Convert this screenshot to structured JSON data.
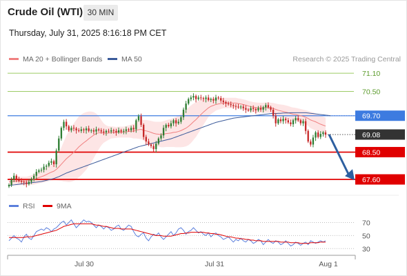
{
  "header": {
    "title": "Crude Oil (WTI)",
    "timeframe": "30 MIN",
    "timestamp": "Thursday, July 31, 2025 8:16:18 PM CET"
  },
  "legend": {
    "bb_label": "MA 20 + Bollinger Bands",
    "ma50_label": "MA 50",
    "credit": "Research © 2025 Trading Central"
  },
  "colors": {
    "bb": "#f08080",
    "ma50": "#3a5a9a",
    "bull": "#2e7d32",
    "bear": "#c62828",
    "resistance": "#9ccc65",
    "support": "#e00000",
    "pivot": "#3d7be0",
    "current": "#333333",
    "arrow": "#2d5fa0",
    "rsi": "#5b7fdc",
    "rsi_ma": "#e00000"
  },
  "chart_data": [
    {
      "type": "candlestick",
      "title": "Crude Oil (WTI)",
      "timeframe": "30 MIN",
      "x_ticks": [
        "Jul 30",
        "Jul 31",
        "Aug 1"
      ],
      "ylim": [
        67.1,
        71.4
      ],
      "levels": [
        {
          "value": 71.1,
          "label": "71.10",
          "kind": "resistance"
        },
        {
          "value": 70.5,
          "label": "70.50",
          "kind": "resistance"
        },
        {
          "value": 69.7,
          "label": "69.70",
          "kind": "pivot"
        },
        {
          "value": 69.08,
          "label": "69.08",
          "kind": "current"
        },
        {
          "value": 68.5,
          "label": "68.50",
          "kind": "support"
        },
        {
          "value": 67.6,
          "label": "67.60",
          "kind": "support"
        }
      ],
      "close": [
        67.42,
        67.6,
        67.72,
        67.62,
        67.55,
        67.52,
        67.5,
        67.45,
        67.52,
        67.62,
        67.72,
        67.85,
        67.9,
        67.92,
        68.02,
        68.05,
        68.15,
        68.2,
        68.1,
        68.55,
        68.95,
        69.3,
        69.5,
        69.35,
        69.22,
        69.3,
        69.28,
        69.22,
        69.2,
        69.25,
        69.22,
        69.28,
        69.2,
        69.22,
        69.18,
        69.25,
        69.22,
        69.18,
        69.15,
        69.2,
        69.18,
        69.22,
        69.2,
        69.15,
        69.22,
        69.18,
        69.2,
        69.25,
        69.22,
        69.3,
        69.25,
        69.55,
        69.68,
        69.4,
        69.0,
        68.85,
        68.75,
        68.7,
        68.6,
        68.78,
        68.95,
        69.05,
        69.3,
        69.4,
        69.35,
        69.45,
        69.55,
        69.45,
        69.5,
        69.65,
        69.9,
        70.1,
        70.25,
        70.3,
        70.35,
        70.25,
        70.3,
        70.28,
        70.25,
        70.3,
        70.22,
        70.25,
        70.2,
        70.3,
        70.28,
        70.2,
        70.15,
        70.1,
        70.08,
        70.05,
        70.02,
        70.0,
        69.98,
        70.0,
        69.95,
        69.9,
        69.88,
        69.95,
        69.92,
        69.88,
        69.95,
        69.9,
        69.98,
        70.05,
        69.98,
        69.9,
        69.7,
        69.45,
        69.58,
        69.52,
        69.6,
        69.55,
        69.48,
        69.42,
        69.55,
        69.62,
        69.55,
        69.45,
        69.52,
        69.2,
        68.85,
        68.75,
        68.98,
        69.15,
        69.0,
        69.1,
        69.15,
        69.08
      ],
      "ma20": [
        67.52,
        67.52,
        67.54,
        67.55,
        67.55,
        67.55,
        67.55,
        67.55,
        67.56,
        67.58,
        67.6,
        67.63,
        67.66,
        67.69,
        67.72,
        67.76,
        67.8,
        67.84,
        67.87,
        67.93,
        68.01,
        68.1,
        68.19,
        68.28,
        68.35,
        68.42,
        68.5,
        68.58,
        68.67,
        68.74,
        68.81,
        68.87,
        68.94,
        69.0,
        69.06,
        69.11,
        69.14,
        69.14,
        69.13,
        69.12,
        69.13,
        69.15,
        69.15,
        69.15,
        69.16,
        69.16,
        69.16,
        69.17,
        69.18,
        69.19,
        69.19,
        69.22,
        69.24,
        69.25,
        69.22,
        69.2,
        69.18,
        69.15,
        69.12,
        69.1,
        69.09,
        69.08,
        69.09,
        69.11,
        69.12,
        69.13,
        69.15,
        69.16,
        69.18,
        69.21,
        69.25,
        69.29,
        69.35,
        69.42,
        69.5,
        69.57,
        69.66,
        69.74,
        69.82,
        69.89,
        69.96,
        70.01,
        70.04,
        70.07,
        70.09,
        70.1,
        70.12,
        70.12,
        70.12,
        70.12,
        70.12,
        70.12,
        70.1,
        70.09,
        70.07,
        70.05,
        70.02,
        70.0,
        69.98,
        69.97,
        69.96,
        69.96,
        69.96,
        69.97,
        69.97,
        69.96,
        69.94,
        69.91,
        69.88,
        69.86,
        69.84,
        69.82,
        69.8,
        69.77,
        69.75,
        69.74,
        69.72,
        69.7,
        69.68,
        69.65,
        69.61,
        69.56,
        69.53,
        69.5,
        69.46,
        69.42,
        69.39,
        69.36
      ],
      "ma50": [
        67.4,
        67.41,
        67.42,
        67.43,
        67.44,
        67.45,
        67.46,
        67.47,
        67.48,
        67.49,
        67.5,
        67.51,
        67.52,
        67.53,
        67.55,
        67.57,
        67.59,
        67.61,
        67.63,
        67.66,
        67.69,
        67.73,
        67.77,
        67.81,
        67.84,
        67.87,
        67.9,
        67.93,
        67.96,
        67.99,
        68.02,
        68.05,
        68.08,
        68.11,
        68.14,
        68.17,
        68.2,
        68.23,
        68.26,
        68.29,
        68.32,
        68.35,
        68.38,
        68.41,
        68.44,
        68.47,
        68.5,
        68.53,
        68.56,
        68.59,
        68.62,
        68.65,
        68.68,
        68.7,
        68.72,
        68.74,
        68.76,
        68.78,
        68.8,
        68.82,
        68.84,
        68.86,
        68.88,
        68.9,
        68.92,
        68.94,
        68.97,
        69.0,
        69.03,
        69.06,
        69.09,
        69.12,
        69.15,
        69.18,
        69.21,
        69.24,
        69.27,
        69.3,
        69.33,
        69.36,
        69.39,
        69.42,
        69.45,
        69.48,
        69.5,
        69.52,
        69.54,
        69.56,
        69.58,
        69.6,
        69.62,
        69.63,
        69.64,
        69.65,
        69.66,
        69.67,
        69.68,
        69.69,
        69.7,
        69.71,
        69.72,
        69.73,
        69.74,
        69.75,
        69.76,
        69.77,
        69.77,
        69.77,
        69.78,
        69.78,
        69.79,
        69.79,
        69.79,
        69.8,
        69.8,
        69.8,
        69.8,
        69.8,
        69.8,
        69.8,
        69.79,
        69.78,
        69.77,
        69.76,
        69.75,
        69.74,
        69.73,
        69.72,
        69.71,
        69.7
      ],
      "bb_width": [
        0.12,
        0.12,
        0.13,
        0.14,
        0.14,
        0.14,
        0.14,
        0.14,
        0.15,
        0.16,
        0.17,
        0.18,
        0.19,
        0.2,
        0.22,
        0.24,
        0.26,
        0.28,
        0.3,
        0.36,
        0.45,
        0.55,
        0.66,
        0.76,
        0.84,
        0.9,
        0.95,
        0.98,
        1.0,
        1.0,
        0.98,
        0.95,
        0.9,
        0.84,
        0.76,
        0.66,
        0.55,
        0.42,
        0.32,
        0.26,
        0.22,
        0.2,
        0.19,
        0.18,
        0.18,
        0.18,
        0.18,
        0.19,
        0.2,
        0.22,
        0.24,
        0.27,
        0.3,
        0.32,
        0.34,
        0.36,
        0.37,
        0.38,
        0.39,
        0.4,
        0.41,
        0.42,
        0.43,
        0.44,
        0.45,
        0.46,
        0.48,
        0.5,
        0.52,
        0.55,
        0.58,
        0.6,
        0.62,
        0.62,
        0.6,
        0.57,
        0.53,
        0.48,
        0.42,
        0.36,
        0.3,
        0.26,
        0.23,
        0.2,
        0.19,
        0.18,
        0.17,
        0.17,
        0.17,
        0.17,
        0.17,
        0.17,
        0.17,
        0.17,
        0.17,
        0.17,
        0.17,
        0.17,
        0.17,
        0.17,
        0.17,
        0.17,
        0.17,
        0.17,
        0.17,
        0.17,
        0.18,
        0.19,
        0.2,
        0.21,
        0.22,
        0.22,
        0.22,
        0.22,
        0.22,
        0.22,
        0.22,
        0.22,
        0.22,
        0.23,
        0.25,
        0.27,
        0.28,
        0.28,
        0.28,
        0.28,
        0.28,
        0.28
      ]
    },
    {
      "type": "line",
      "legend": [
        "RSI",
        "9MA"
      ],
      "y_ticks": [
        70,
        50,
        30
      ],
      "ylim": [
        25,
        80
      ],
      "rsi": [
        42,
        46,
        50,
        46,
        44,
        40,
        48,
        52,
        46,
        44,
        50,
        56,
        58,
        60,
        58,
        62,
        60,
        56,
        60,
        62,
        66,
        70,
        72,
        66,
        70,
        74,
        68,
        62,
        66,
        70,
        74,
        71,
        72,
        70,
        66,
        62,
        66,
        64,
        60,
        64,
        62,
        58,
        60,
        64,
        66,
        60,
        58,
        62,
        66,
        64,
        56,
        50,
        48,
        52,
        54,
        46,
        42,
        48,
        52,
        50,
        54,
        48,
        44,
        48,
        52,
        56,
        50,
        54,
        60,
        62,
        58,
        52,
        56,
        58,
        62,
        58,
        54,
        56,
        52,
        50,
        54,
        48,
        52,
        54,
        50,
        48,
        44,
        46,
        48,
        44,
        40,
        44,
        42,
        46,
        42,
        40,
        44,
        42,
        38,
        40,
        44,
        42,
        36,
        40,
        44,
        40,
        38,
        42,
        40,
        36,
        38,
        42,
        38,
        34,
        36,
        40,
        38,
        35,
        38,
        40,
        36,
        42,
        40,
        38,
        40,
        42,
        40,
        42
      ],
      "rsi_ma": [
        47,
        47,
        47,
        47,
        47,
        47,
        47,
        48,
        48,
        48,
        49,
        50,
        51,
        52,
        53,
        54,
        55,
        56,
        57,
        58,
        60,
        62,
        64,
        65,
        66,
        67,
        68,
        68,
        68,
        68,
        68,
        68,
        68,
        68,
        67,
        66,
        66,
        65,
        64,
        64,
        63,
        62,
        61,
        61,
        61,
        60,
        60,
        60,
        60,
        60,
        59,
        58,
        57,
        56,
        55,
        54,
        53,
        52,
        51,
        50,
        50,
        50,
        49,
        49,
        49,
        49,
        50,
        51,
        52,
        53,
        53,
        54,
        54,
        55,
        55,
        55,
        55,
        55,
        55,
        54,
        54,
        53,
        53,
        52,
        52,
        51,
        50,
        49,
        48,
        48,
        47,
        46,
        46,
        45,
        45,
        44,
        44,
        43,
        43,
        42,
        42,
        42,
        41,
        41,
        41,
        41,
        41,
        41,
        41,
        40,
        40,
        40,
        40,
        39,
        39,
        39,
        39,
        38,
        38,
        38,
        38,
        39,
        39,
        39,
        39,
        40,
        40,
        40
      ]
    }
  ]
}
